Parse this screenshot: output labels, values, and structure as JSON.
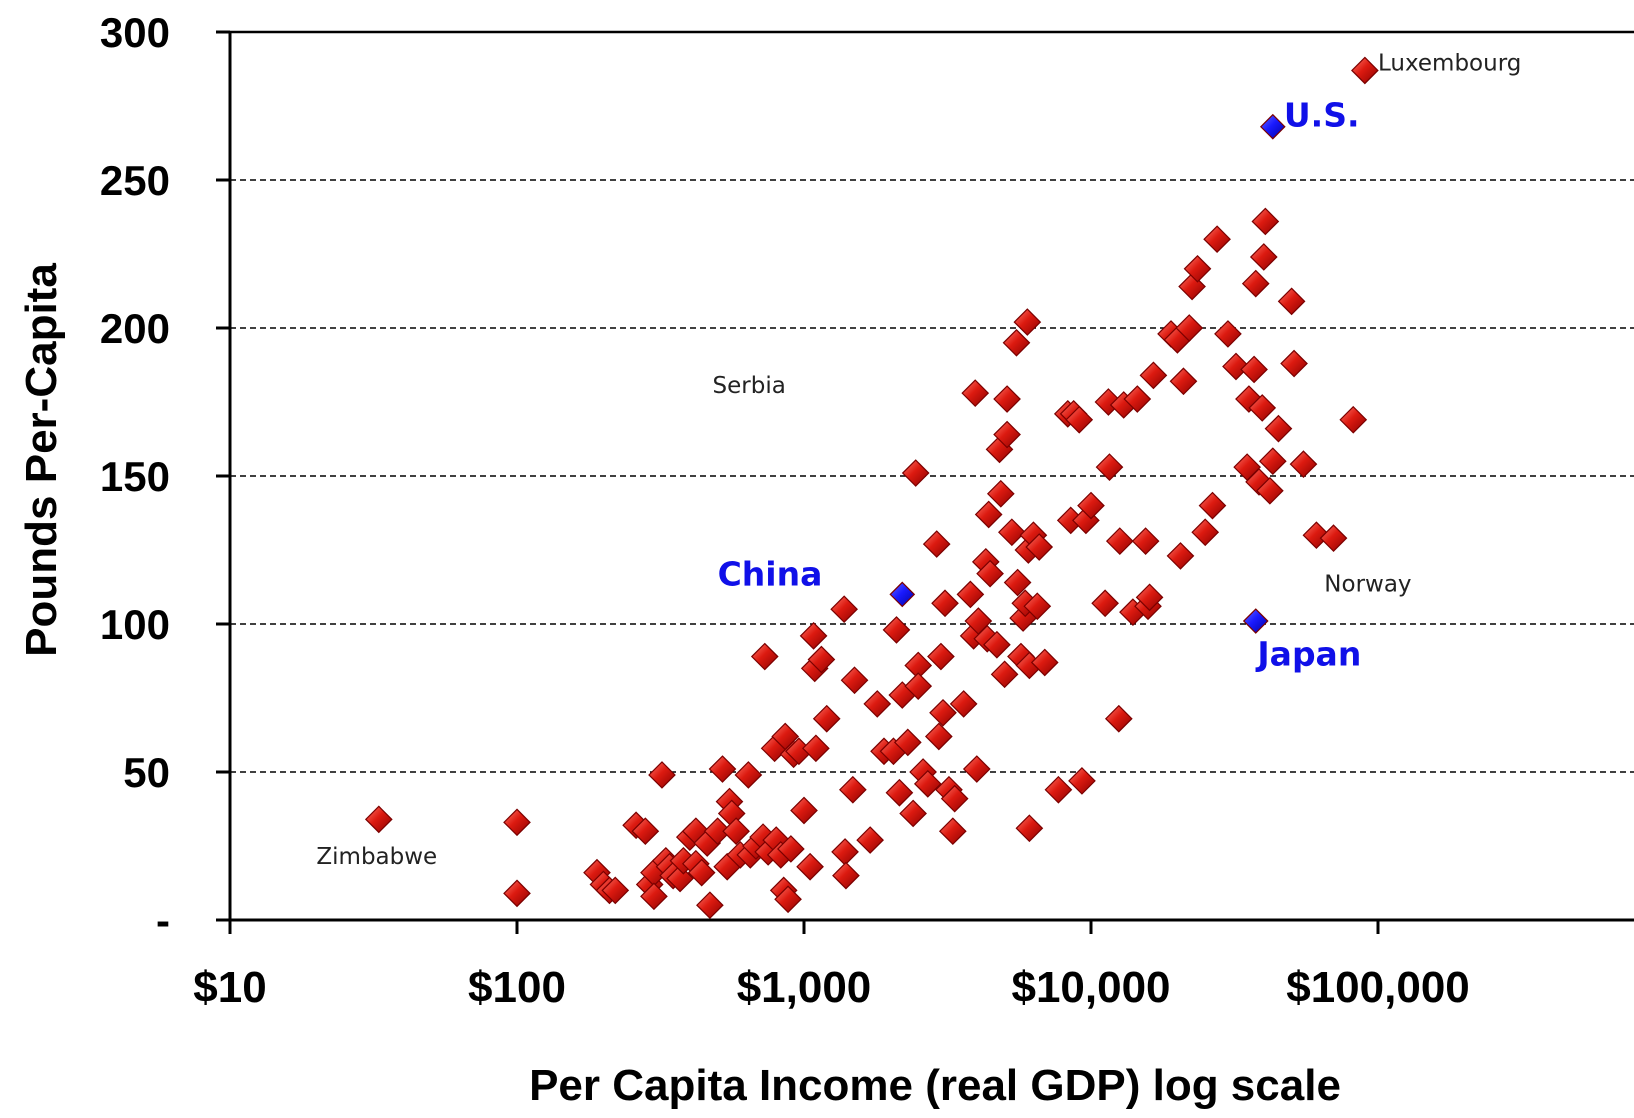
{
  "chart_data": {
    "type": "scatter",
    "title": "",
    "xlabel": "Per Capita Income (real GDP) log scale",
    "ylabel": "Pounds Per-Capita",
    "x_scale": "log",
    "xlim": [
      10,
      500000
    ],
    "ylim": [
      0,
      300
    ],
    "grid": "horizontal-dashed",
    "legend": "none",
    "x_ticks": [
      {
        "value": 10,
        "label": "$10"
      },
      {
        "value": 100,
        "label": "$100"
      },
      {
        "value": 1000,
        "label": "$1,000"
      },
      {
        "value": 10000,
        "label": "$10,000"
      },
      {
        "value": 100000,
        "label": "$100,000"
      }
    ],
    "y_ticks": [
      {
        "value": 0,
        "label": "-"
      },
      {
        "value": 50,
        "label": "50"
      },
      {
        "value": 100,
        "label": "100"
      },
      {
        "value": 150,
        "label": "150"
      },
      {
        "value": 200,
        "label": "200"
      },
      {
        "value": 250,
        "label": "250"
      },
      {
        "value": 300,
        "label": "300"
      }
    ],
    "colors": {
      "points": "#cc0000",
      "highlight": "#1010e8",
      "highlight_text": "#1010e8",
      "grid": "#000000"
    },
    "annotations": [
      {
        "text": "Luxembourg",
        "x": 100000,
        "y": 287,
        "style": "gray"
      },
      {
        "text": "U.S.",
        "x": 47000,
        "y": 268,
        "style": "blue"
      },
      {
        "text": "Serbia",
        "x": 480,
        "y": 178,
        "style": "gray"
      },
      {
        "text": "China",
        "x": 500,
        "y": 113,
        "style": "blue"
      },
      {
        "text": "Norway",
        "x": 65000,
        "y": 111,
        "style": "gray"
      },
      {
        "text": "Japan",
        "x": 38000,
        "y": 86,
        "style": "blue"
      },
      {
        "text": "Zimbabwe",
        "x": 20,
        "y": 19,
        "style": "gray"
      }
    ],
    "highlighted_points": [
      {
        "label": "U.S.",
        "x": 43000,
        "y": 268
      },
      {
        "label": "China",
        "x": 2200,
        "y": 110
      },
      {
        "label": "Japan",
        "x": 37500,
        "y": 101
      }
    ],
    "points": [
      [
        33,
        34
      ],
      [
        100,
        33
      ],
      [
        100,
        9
      ],
      [
        190,
        16
      ],
      [
        200,
        12
      ],
      [
        210,
        10
      ],
      [
        220,
        10
      ],
      [
        260,
        32
      ],
      [
        280,
        30
      ],
      [
        290,
        12
      ],
      [
        300,
        16
      ],
      [
        300,
        8
      ],
      [
        320,
        49
      ],
      [
        330,
        20
      ],
      [
        340,
        18
      ],
      [
        350,
        15
      ],
      [
        370,
        14
      ],
      [
        380,
        20
      ],
      [
        400,
        28
      ],
      [
        420,
        30
      ],
      [
        420,
        19
      ],
      [
        440,
        16
      ],
      [
        460,
        26
      ],
      [
        470,
        5
      ],
      [
        500,
        30
      ],
      [
        520,
        51
      ],
      [
        540,
        18
      ],
      [
        550,
        40
      ],
      [
        560,
        36
      ],
      [
        580,
        30
      ],
      [
        600,
        22
      ],
      [
        640,
        49
      ],
      [
        650,
        22
      ],
      [
        680,
        25
      ],
      [
        720,
        28
      ],
      [
        730,
        89
      ],
      [
        750,
        23
      ],
      [
        790,
        58
      ],
      [
        800,
        27
      ],
      [
        830,
        22
      ],
      [
        850,
        10
      ],
      [
        860,
        62
      ],
      [
        880,
        7
      ],
      [
        900,
        24
      ],
      [
        920,
        56
      ],
      [
        960,
        57
      ],
      [
        1000,
        37
      ],
      [
        1050,
        18
      ],
      [
        1080,
        96
      ],
      [
        1090,
        85
      ],
      [
        1100,
        58
      ],
      [
        1150,
        88
      ],
      [
        1200,
        68
      ],
      [
        1380,
        105
      ],
      [
        1390,
        23
      ],
      [
        1400,
        15
      ],
      [
        1480,
        44
      ],
      [
        1500,
        81
      ],
      [
        1700,
        27
      ],
      [
        1800,
        73
      ],
      [
        1900,
        57
      ],
      [
        2050,
        57
      ],
      [
        2100,
        98
      ],
      [
        2150,
        43
      ],
      [
        2200,
        76
      ],
      [
        2300,
        60
      ],
      [
        2400,
        36
      ],
      [
        2450,
        151
      ],
      [
        2500,
        86
      ],
      [
        2500,
        79
      ],
      [
        2600,
        50
      ],
      [
        2700,
        46
      ],
      [
        2900,
        127
      ],
      [
        2950,
        62
      ],
      [
        3000,
        89
      ],
      [
        3050,
        70
      ],
      [
        3100,
        107
      ],
      [
        3200,
        44
      ],
      [
        3300,
        30
      ],
      [
        3350,
        41
      ],
      [
        3600,
        73
      ],
      [
        3800,
        110
      ],
      [
        3900,
        96
      ],
      [
        3950,
        178
      ],
      [
        4000,
        51
      ],
      [
        4050,
        101
      ],
      [
        4300,
        121
      ],
      [
        4350,
        95
      ],
      [
        4400,
        137
      ],
      [
        4450,
        117
      ],
      [
        4700,
        93
      ],
      [
        4800,
        159
      ],
      [
        4850,
        144
      ],
      [
        5000,
        83
      ],
      [
        5100,
        164
      ],
      [
        5100,
        176
      ],
      [
        5300,
        131
      ],
      [
        5500,
        195
      ],
      [
        5550,
        114
      ],
      [
        5700,
        89
      ],
      [
        5800,
        102
      ],
      [
        5900,
        107
      ],
      [
        6000,
        202
      ],
      [
        6050,
        125
      ],
      [
        6100,
        31
      ],
      [
        6100,
        86
      ],
      [
        6300,
        130
      ],
      [
        6500,
        106
      ],
      [
        6600,
        126
      ],
      [
        6900,
        87
      ],
      [
        7700,
        44
      ],
      [
        8300,
        171
      ],
      [
        8500,
        135
      ],
      [
        8700,
        171
      ],
      [
        9100,
        169
      ],
      [
        9300,
        47
      ],
      [
        9600,
        135
      ],
      [
        10000,
        140
      ],
      [
        11200,
        107
      ],
      [
        11500,
        175
      ],
      [
        11600,
        153
      ],
      [
        12500,
        68
      ],
      [
        12600,
        128
      ],
      [
        13000,
        174
      ],
      [
        14000,
        104
      ],
      [
        14500,
        176
      ],
      [
        15500,
        128
      ],
      [
        15800,
        106
      ],
      [
        16000,
        109
      ],
      [
        16500,
        184
      ],
      [
        19000,
        198
      ],
      [
        20000,
        196
      ],
      [
        20500,
        123
      ],
      [
        21000,
        182
      ],
      [
        22000,
        200
      ],
      [
        22500,
        214
      ],
      [
        23500,
        220
      ],
      [
        25000,
        131
      ],
      [
        26500,
        140
      ],
      [
        27500,
        230
      ],
      [
        30000,
        198
      ],
      [
        32000,
        187
      ],
      [
        35000,
        153
      ],
      [
        35500,
        176
      ],
      [
        37000,
        186
      ],
      [
        37500,
        215
      ],
      [
        38500,
        148
      ],
      [
        39500,
        173
      ],
      [
        40000,
        224
      ],
      [
        40500,
        236
      ],
      [
        42000,
        145
      ],
      [
        43000,
        155
      ],
      [
        45000,
        166
      ],
      [
        50000,
        209
      ],
      [
        51000,
        188
      ],
      [
        55000,
        154
      ],
      [
        61000,
        130
      ],
      [
        70000,
        129
      ],
      [
        82000,
        169
      ],
      [
        90000,
        287
      ]
    ]
  }
}
